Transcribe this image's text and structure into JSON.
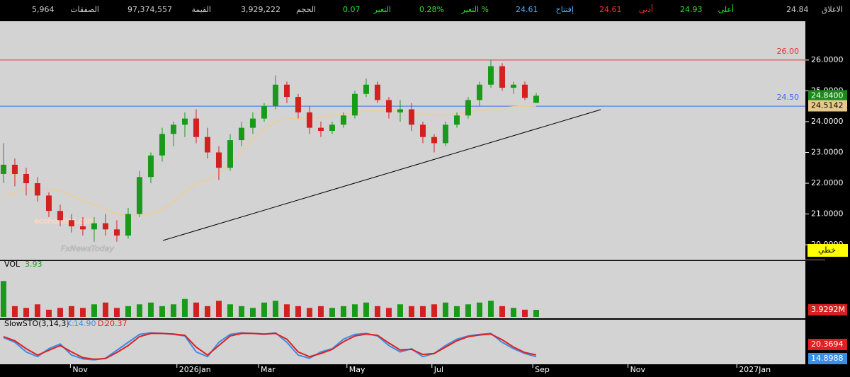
{
  "header": {
    "stats": [
      {
        "label": "الاغلاق",
        "value": "24.84",
        "label_color": "#cccccc",
        "value_color": "#cccccc"
      },
      {
        "label": "أعلى",
        "value": "24.93",
        "label_color": "#2ee02e",
        "value_color": "#2ee02e"
      },
      {
        "label": "أدنى",
        "value": "24.61",
        "label_color": "#ff3030",
        "value_color": "#ff3030"
      },
      {
        "label": "إفتتاح",
        "value": "24.61",
        "label_color": "#4ab0ff",
        "value_color": "#4ab0ff"
      },
      {
        "label": "التغير %",
        "value": "0.28%",
        "label_color": "#2ee02e",
        "value_color": "#2ee02e"
      },
      {
        "label": "التغير",
        "value": "0.07",
        "label_color": "#2ee02e",
        "value_color": "#2ee02e"
      },
      {
        "label": "الحجم",
        "value": "3,929,222",
        "label_color": "#cccccc",
        "value_color": "#cccccc"
      },
      {
        "label": "القيمة",
        "value": "97,374,557",
        "label_color": "#cccccc",
        "value_color": "#cccccc"
      },
      {
        "label": "الصفقات",
        "value": "5,964",
        "label_color": "#cccccc",
        "value_color": "#cccccc"
      }
    ]
  },
  "chart_data": [
    {
      "type": "candlestick",
      "up_color": "#1a9a1a",
      "down_color": "#d42020",
      "open": [
        22.3,
        22.6,
        22.3,
        22.0,
        21.6,
        21.1,
        20.8,
        20.6,
        20.5,
        20.7,
        20.5,
        20.3,
        21.0,
        22.2,
        22.9,
        23.6,
        23.9,
        24.1,
        23.5,
        23.0,
        22.5,
        23.4,
        23.8,
        24.1,
        24.5,
        25.2,
        24.8,
        24.3,
        23.8,
        23.7,
        23.9,
        24.2,
        24.9,
        25.2,
        24.7,
        24.3,
        24.4,
        23.9,
        23.5,
        23.3,
        23.9,
        24.2,
        24.7,
        25.2,
        25.8,
        25.1,
        25.2,
        24.61
      ],
      "high": [
        23.3,
        22.8,
        22.5,
        22.2,
        21.7,
        21.3,
        21.0,
        20.9,
        20.9,
        21.0,
        20.8,
        21.2,
        22.4,
        23.0,
        23.8,
        24.0,
        24.3,
        24.4,
        23.8,
        23.2,
        23.6,
        24.0,
        24.3,
        24.6,
        25.5,
        25.3,
        24.9,
        24.5,
        24.0,
        24.0,
        24.3,
        25.0,
        25.4,
        25.3,
        24.8,
        24.7,
        24.6,
        24.0,
        23.6,
        24.0,
        24.3,
        24.8,
        25.3,
        26.0,
        25.9,
        25.3,
        25.3,
        24.93
      ],
      "low": [
        22.0,
        21.9,
        21.6,
        21.4,
        20.9,
        20.6,
        20.4,
        20.3,
        20.1,
        20.3,
        20.1,
        20.2,
        20.9,
        22.0,
        22.7,
        23.2,
        23.5,
        23.3,
        22.8,
        22.1,
        22.4,
        23.2,
        23.6,
        24.0,
        24.4,
        24.6,
        24.1,
        23.6,
        23.5,
        23.6,
        23.8,
        24.1,
        24.8,
        24.6,
        24.1,
        24.0,
        23.7,
        23.3,
        23.0,
        23.2,
        23.8,
        24.1,
        24.5,
        25.1,
        25.0,
        24.9,
        24.7,
        24.61
      ],
      "close": [
        22.6,
        22.3,
        22.0,
        21.6,
        21.1,
        20.8,
        20.6,
        20.5,
        20.7,
        20.5,
        20.3,
        21.0,
        22.2,
        22.9,
        23.6,
        23.9,
        24.1,
        23.5,
        23.0,
        22.5,
        23.4,
        23.8,
        24.1,
        24.5,
        25.2,
        24.8,
        24.3,
        23.8,
        23.7,
        23.9,
        24.2,
        24.9,
        25.2,
        24.7,
        24.3,
        24.4,
        23.9,
        23.5,
        23.3,
        23.9,
        24.2,
        24.7,
        25.2,
        25.8,
        25.1,
        25.2,
        24.77,
        24.84
      ],
      "moving_average": {
        "color": "#e8cfa0",
        "values": [
          21.6,
          21.7,
          21.8,
          21.8,
          21.8,
          21.75,
          21.6,
          21.45,
          21.3,
          21.15,
          21.0,
          20.95,
          20.95,
          21.0,
          21.15,
          21.4,
          21.7,
          22.0,
          22.1,
          22.3,
          22.6,
          23.0,
          23.4,
          23.75,
          24.0,
          24.1,
          24.1,
          24.1,
          24.15,
          24.2,
          24.25,
          24.3,
          24.35,
          24.35,
          24.35,
          24.35,
          24.3,
          24.25,
          24.2,
          24.2,
          24.25,
          24.3,
          24.35,
          24.4,
          24.45,
          24.48,
          24.5,
          24.5142
        ]
      },
      "ylim": [
        19.52,
        27.26
      ],
      "yticks": [
        {
          "value": 20,
          "label": "20.0000"
        },
        {
          "value": 21,
          "label": "21.0000"
        },
        {
          "value": 22,
          "label": "22.0000"
        },
        {
          "value": 23,
          "label": "23.0000"
        },
        {
          "value": 24,
          "label": "24.0000"
        },
        {
          "value": 25,
          "label": "25.0000"
        },
        {
          "value": 26,
          "label": "26.0000"
        }
      ],
      "xlim": [
        -0.31,
        70.75
      ],
      "xticks": [
        {
          "value": 5.9,
          "label": "Nov"
        },
        {
          "value": 15.3,
          "label": "2026Jan"
        },
        {
          "value": 22.5,
          "label": "Mar"
        },
        {
          "value": 30.3,
          "label": "May"
        },
        {
          "value": 37.8,
          "label": "Jul"
        },
        {
          "value": 46.7,
          "label": "Sep"
        },
        {
          "value": 55.1,
          "label": "Nov"
        },
        {
          "value": 64.7,
          "label": "2027Jan"
        }
      ],
      "hlines": [
        {
          "value": 26,
          "label": "26.00",
          "color": "#e0303a"
        },
        {
          "value": 24.5,
          "label": "24.50",
          "color": "#3a6cf0"
        }
      ],
      "trendline": {
        "x": [
          14.06,
          52.69
        ],
        "y": [
          20.14,
          24.39
        ],
        "color": "#000000"
      },
      "price_tags": [
        {
          "value": 24.84,
          "label": "24.8400",
          "color": "#1a8a1a",
          "text_color": "#ffffff"
        },
        {
          "value": 24.5142,
          "label": "24.5142",
          "color": "#e6c98a",
          "text_color": "#000000"
        }
      ],
      "scale_label": "خطي",
      "watermark": [
        "economies.com",
        "FxNewsToday"
      ]
    },
    {
      "type": "bar",
      "title": "VOL",
      "last_value": 3.93,
      "values": [
        20,
        6,
        5,
        7,
        4,
        5,
        6,
        5,
        7,
        8,
        5,
        6,
        7,
        8,
        6,
        7,
        10,
        8,
        6,
        9,
        7,
        6,
        5,
        8,
        9,
        7,
        6,
        5,
        6,
        5,
        6,
        7,
        8,
        6,
        5,
        7,
        6,
        6,
        7,
        8,
        6,
        7,
        8,
        9,
        6,
        5,
        4,
        3.9292
      ],
      "ylim": [
        0,
        30
      ],
      "tag": {
        "value": 3.9292,
        "label": "3.9292M",
        "color": "#d42020"
      }
    },
    {
      "type": "line",
      "title": "SlowSTO(3,14,3)",
      "ylim": [
        0,
        100
      ],
      "series": [
        {
          "name": "K:",
          "color": "#3a8ee6",
          "last": {
            "value": 14.9,
            "label": "14.90"
          },
          "tag": {
            "value": 14.8988,
            "label": "14.8988"
          },
          "values": [
            75,
            60,
            30,
            15,
            40,
            55,
            20,
            8,
            5,
            10,
            35,
            60,
            85,
            90,
            88,
            85,
            80,
            30,
            15,
            60,
            85,
            90,
            88,
            85,
            90,
            60,
            20,
            10,
            30,
            40,
            70,
            85,
            88,
            80,
            50,
            30,
            40,
            15,
            25,
            50,
            70,
            80,
            85,
            88,
            60,
            40,
            25,
            14.9
          ]
        },
        {
          "name": "D:",
          "color": "#e02020",
          "last": {
            "value": 20.37,
            "label": "20.37"
          },
          "tag": {
            "value": 20.3694,
            "label": "20.3694"
          },
          "values": [
            78,
            65,
            40,
            20,
            35,
            50,
            30,
            12,
            7,
            9,
            28,
            50,
            78,
            88,
            88,
            86,
            82,
            45,
            20,
            50,
            80,
            88,
            88,
            86,
            88,
            70,
            30,
            15,
            25,
            38,
            62,
            80,
            86,
            82,
            58,
            36,
            38,
            22,
            25,
            45,
            65,
            78,
            83,
            86,
            68,
            45,
            28,
            20.37
          ]
        }
      ]
    }
  ]
}
